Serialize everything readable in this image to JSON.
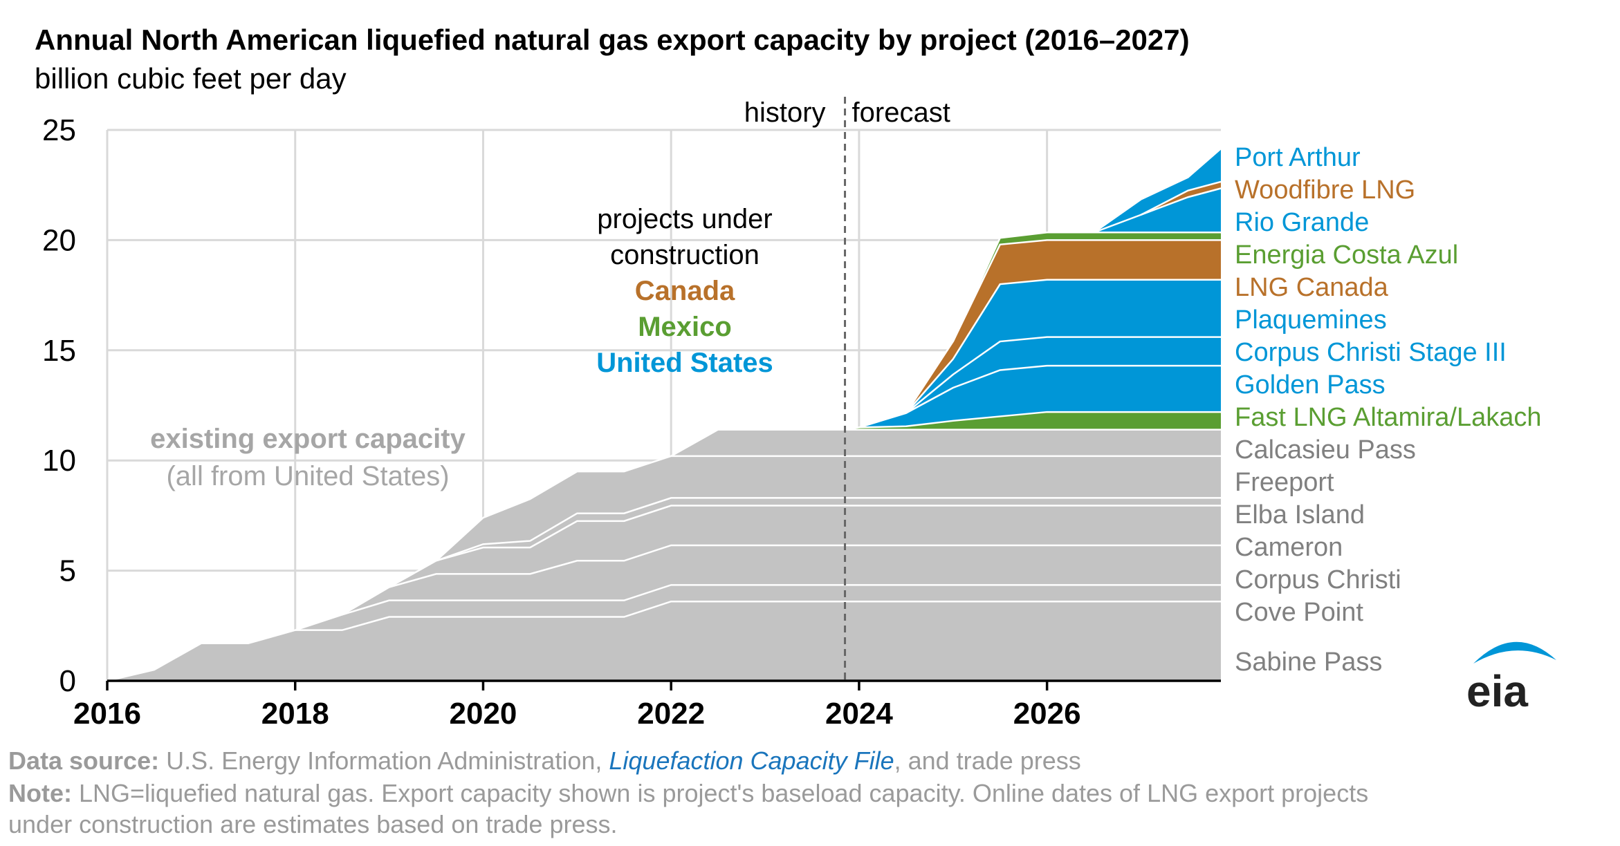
{
  "title": "Annual North American liquefied natural gas export capacity by project (2016–2027)",
  "subtitle": "billion cubic feet per day",
  "colors": {
    "existing": "#c3c3c3",
    "existing_label": "#808080",
    "us": "#0096d7",
    "canada": "#b8712a",
    "mexico": "#5a9e32",
    "axis": "#000000",
    "grid": "#d9d9d9"
  },
  "annotations": {
    "history": "history",
    "forecast": "forecast",
    "under_construction_1": "projects under",
    "under_construction_2": "construction",
    "canada": "Canada",
    "mexico": "Mexico",
    "united_states": "United States",
    "existing_1": "existing export capacity",
    "existing_2": "(all from United States)"
  },
  "footer": {
    "source_bold": "Data source:",
    "source_text_1": " U.S. Energy Information Administration, ",
    "source_link": "Liquefaction Capacity File",
    "source_text_2": ", and trade press",
    "note_bold": "Note:",
    "note_text_1": " LNG=liquefied natural gas. Export capacity shown is project's baseload capacity. Online dates of LNG export projects",
    "note_text_2": "under construction are estimates based on trade press."
  },
  "logo": {
    "text": "eia",
    "color": "#0096d7"
  },
  "chart_data": {
    "type": "area",
    "stacked": true,
    "title": "Annual North American liquefied natural gas export capacity by project (2016–2027)",
    "ylabel": "billion cubic feet per day",
    "xlim": [
      2016,
      2027.85
    ],
    "ylim": [
      0,
      25
    ],
    "x_ticks": [
      2016,
      2018,
      2020,
      2022,
      2024,
      2026
    ],
    "y_ticks": [
      0,
      5,
      10,
      15,
      20,
      25
    ],
    "grid": true,
    "history_forecast_divider": 2023.85,
    "x": [
      2016,
      2016.5,
      2017,
      2017.5,
      2018,
      2018.5,
      2019,
      2019.5,
      2020,
      2020.5,
      2021,
      2021.5,
      2022,
      2022.5,
      2023,
      2023.5,
      2023.85,
      2024,
      2024.5,
      2025,
      2025.5,
      2026,
      2026.5,
      2027,
      2027.5,
      2027.85
    ],
    "series": [
      {
        "name": "Sabine Pass",
        "group": "existing",
        "values": [
          0,
          0.5,
          1.7,
          1.7,
          2.3,
          2.3,
          2.9,
          2.9,
          2.9,
          2.9,
          2.9,
          2.9,
          3.6,
          3.6,
          3.6,
          3.6,
          3.6,
          3.6,
          3.6,
          3.6,
          3.6,
          3.6,
          3.6,
          3.6,
          3.6,
          3.6
        ]
      },
      {
        "name": "Cove Point",
        "group": "existing",
        "values": [
          0,
          0,
          0,
          0,
          0,
          0.7,
          0.75,
          0.75,
          0.75,
          0.75,
          0.75,
          0.75,
          0.75,
          0.75,
          0.75,
          0.75,
          0.75,
          0.75,
          0.75,
          0.75,
          0.75,
          0.75,
          0.75,
          0.75,
          0.75,
          0.75
        ]
      },
      {
        "name": "Corpus Christi",
        "group": "existing",
        "values": [
          0,
          0,
          0,
          0,
          0,
          0,
          0.6,
          1.2,
          1.2,
          1.2,
          1.8,
          1.8,
          1.8,
          1.8,
          1.8,
          1.8,
          1.8,
          1.8,
          1.8,
          1.8,
          1.8,
          1.8,
          1.8,
          1.8,
          1.8,
          1.8
        ]
      },
      {
        "name": "Cameron",
        "group": "existing",
        "values": [
          0,
          0,
          0,
          0,
          0,
          0,
          0,
          0.6,
          1.2,
          1.2,
          1.8,
          1.8,
          1.8,
          1.8,
          1.8,
          1.8,
          1.8,
          1.8,
          1.8,
          1.8,
          1.8,
          1.8,
          1.8,
          1.8,
          1.8,
          1.8
        ]
      },
      {
        "name": "Elba Island",
        "group": "existing",
        "values": [
          0,
          0,
          0,
          0,
          0,
          0,
          0,
          0,
          0.15,
          0.3,
          0.35,
          0.35,
          0.35,
          0.35,
          0.35,
          0.35,
          0.35,
          0.35,
          0.35,
          0.35,
          0.35,
          0.35,
          0.35,
          0.35,
          0.35,
          0.35
        ]
      },
      {
        "name": "Freeport",
        "group": "existing",
        "values": [
          0,
          0,
          0,
          0,
          0,
          0,
          0,
          0,
          1.2,
          1.9,
          1.9,
          1.9,
          1.9,
          1.9,
          1.9,
          1.9,
          1.9,
          1.9,
          1.9,
          1.9,
          1.9,
          1.9,
          1.9,
          1.9,
          1.9,
          1.9
        ]
      },
      {
        "name": "Calcasieu Pass",
        "group": "existing",
        "values": [
          0,
          0,
          0,
          0,
          0,
          0,
          0,
          0,
          0,
          0,
          0,
          0,
          0,
          1.2,
          1.2,
          1.2,
          1.2,
          1.2,
          1.2,
          1.2,
          1.2,
          1.2,
          1.2,
          1.2,
          1.2,
          1.2
        ]
      },
      {
        "name": "Fast LNG Altamira/Lakach",
        "group": "mexico",
        "values": [
          0,
          0,
          0,
          0,
          0,
          0,
          0,
          0,
          0,
          0,
          0,
          0,
          0,
          0,
          0,
          0,
          0,
          0.1,
          0.15,
          0.4,
          0.6,
          0.8,
          0.8,
          0.8,
          0.8,
          0.8
        ]
      },
      {
        "name": "Golden Pass",
        "group": "us",
        "values": [
          0,
          0,
          0,
          0,
          0,
          0,
          0,
          0,
          0,
          0,
          0,
          0,
          0,
          0,
          0,
          0,
          0,
          0,
          0.6,
          1.5,
          2.1,
          2.1,
          2.1,
          2.1,
          2.1,
          2.1
        ]
      },
      {
        "name": "Corpus Christi Stage III",
        "group": "us",
        "values": [
          0,
          0,
          0,
          0,
          0,
          0,
          0,
          0,
          0,
          0,
          0,
          0,
          0,
          0,
          0,
          0,
          0,
          0,
          0,
          0.6,
          1.3,
          1.3,
          1.3,
          1.3,
          1.3,
          1.3
        ]
      },
      {
        "name": "Plaquemines",
        "group": "us",
        "values": [
          0,
          0,
          0,
          0,
          0,
          0,
          0,
          0,
          0,
          0,
          0,
          0,
          0,
          0,
          0,
          0,
          0,
          0,
          0,
          0.7,
          2.6,
          2.6,
          2.6,
          2.6,
          2.6,
          2.6
        ]
      },
      {
        "name": "LNG Canada",
        "group": "canada",
        "values": [
          0,
          0,
          0,
          0,
          0,
          0,
          0,
          0,
          0,
          0,
          0,
          0,
          0,
          0,
          0,
          0,
          0,
          0,
          0,
          0.8,
          1.8,
          1.8,
          1.8,
          1.8,
          1.8,
          1.8
        ]
      },
      {
        "name": "Energia Costa Azul",
        "group": "mexico",
        "values": [
          0,
          0,
          0,
          0,
          0,
          0,
          0,
          0,
          0,
          0,
          0,
          0,
          0,
          0,
          0,
          0,
          0,
          0,
          0,
          0,
          0.3,
          0.35,
          0.35,
          0.35,
          0.35,
          0.35
        ]
      },
      {
        "name": "Rio Grande",
        "group": "us",
        "values": [
          0,
          0,
          0,
          0,
          0,
          0,
          0,
          0,
          0,
          0,
          0,
          0,
          0,
          0,
          0,
          0,
          0,
          0,
          0,
          0,
          0,
          0,
          0,
          0.8,
          1.6,
          2.0
        ]
      },
      {
        "name": "Woodfibre LNG",
        "group": "canada",
        "values": [
          0,
          0,
          0,
          0,
          0,
          0,
          0,
          0,
          0,
          0,
          0,
          0,
          0,
          0,
          0,
          0,
          0,
          0,
          0,
          0,
          0,
          0,
          0,
          0,
          0.3,
          0.3
        ]
      },
      {
        "name": "Port Arthur",
        "group": "us",
        "values": [
          0,
          0,
          0,
          0,
          0,
          0,
          0,
          0,
          0,
          0,
          0,
          0,
          0,
          0,
          0,
          0,
          0,
          0,
          0,
          0,
          0,
          0,
          0,
          0.7,
          0.6,
          1.5
        ]
      }
    ],
    "legend_order_top_to_bottom": [
      "Port Arthur",
      "Woodfibre LNG",
      "Rio Grande",
      "Energia Costa Azul",
      "LNG Canada",
      "Plaquemines",
      "Corpus Christi Stage III",
      "Golden Pass",
      "Fast LNG Altamira/Lakach",
      "Calcasieu Pass",
      "Freeport",
      "Elba Island",
      "Cameron",
      "Corpus Christi",
      "Cove Point",
      "Sabine Pass"
    ],
    "legend_placement": "right"
  }
}
